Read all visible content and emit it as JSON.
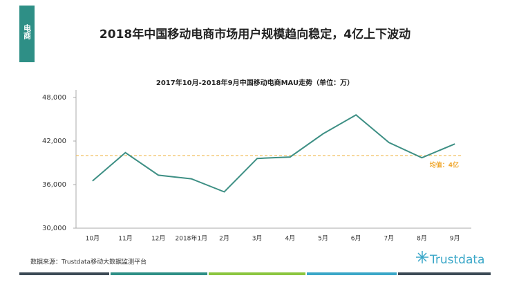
{
  "tab": "电商",
  "slide_title": "2018年中国移动电商市场用户规模趋向稳定，4亿上下波动",
  "chart_data": {
    "type": "line",
    "title": "2017年10月-2018年9月中国移动电商MAU走势（单位：万）",
    "categories": [
      "10月",
      "11月",
      "12月",
      "2018年1月",
      "2月",
      "3月",
      "4月",
      "5月",
      "6月",
      "7月",
      "8月",
      "9月"
    ],
    "series": [
      {
        "name": "MAU",
        "color": "#3d8f84",
        "values": [
          36500,
          40400,
          37300,
          36800,
          35000,
          39600,
          39800,
          43000,
          45600,
          41800,
          39700,
          41600
        ]
      }
    ],
    "ylim": [
      30000,
      48000
    ],
    "yticks": [
      {
        "value": 30000,
        "label": "30,000"
      },
      {
        "value": 36000,
        "label": "36,000"
      },
      {
        "value": 42000,
        "label": "42,000"
      },
      {
        "value": 48000,
        "label": "48,000"
      }
    ],
    "mean_line": {
      "value": 40000,
      "label": "均值：4亿",
      "color": "#f2c060"
    },
    "grid": false
  },
  "source": "数据来源：Trustdata移动大数据监测平台",
  "logo": "Trustdata"
}
